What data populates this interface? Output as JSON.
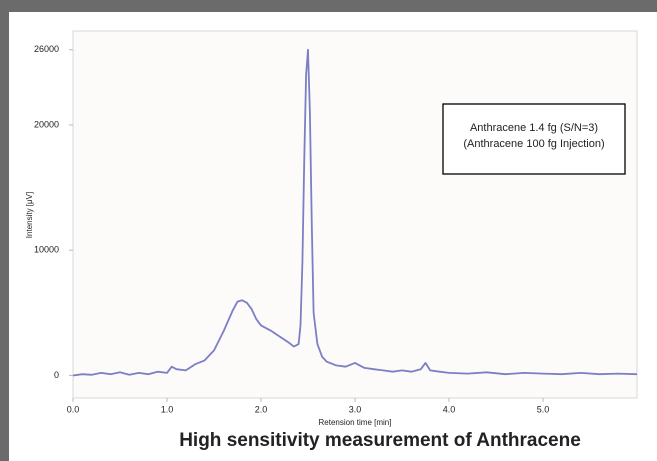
{
  "chart_data": {
    "type": "line",
    "title": "High sensitivity measurement of Anthracene",
    "x_label": "Retension time [min]",
    "y_label": "Intensity [μV]",
    "annotations": [
      "Anthracene 1.4 fg (S/N=3)",
      "(Anthracene 100 fg Injection)"
    ],
    "color": "#7b7fc4",
    "x": [
      0,
      0.1,
      0.2,
      0.3,
      0.4,
      0.5,
      0.6,
      0.7,
      0.8,
      0.9,
      1.0,
      1.05,
      1.1,
      1.2,
      1.3,
      1.4,
      1.5,
      1.6,
      1.7,
      1.75,
      1.8,
      1.85,
      1.9,
      1.95,
      2.0,
      2.05,
      2.1,
      2.2,
      2.3,
      2.35,
      2.4,
      2.42,
      2.44,
      2.46,
      2.48,
      2.5,
      2.52,
      2.54,
      2.56,
      2.6,
      2.65,
      2.7,
      2.8,
      2.9,
      3.0,
      3.1,
      3.2,
      3.3,
      3.4,
      3.5,
      3.6,
      3.7,
      3.75,
      3.8,
      3.9,
      4.0,
      4.2,
      4.4,
      4.6,
      4.8,
      5.0,
      5.2,
      5.4,
      5.6,
      5.8,
      6.0
    ],
    "values": [
      0,
      100,
      50,
      200,
      100,
      250,
      50,
      200,
      100,
      300,
      200,
      700,
      500,
      400,
      900,
      1200,
      2000,
      3500,
      5200,
      5900,
      6000,
      5800,
      5300,
      4500,
      4000,
      3800,
      3600,
      3100,
      2600,
      2300,
      2500,
      4000,
      9000,
      17000,
      24000,
      26000,
      21000,
      12000,
      5000,
      2500,
      1500,
      1100,
      800,
      700,
      1000,
      600,
      500,
      400,
      300,
      400,
      300,
      500,
      1000,
      400,
      300,
      200,
      150,
      250,
      100,
      200,
      150,
      100,
      200,
      100,
      150,
      100
    ],
    "xlim": [
      0,
      6
    ],
    "ylim": [
      -1800,
      27500
    ],
    "xticks": [
      {
        "value": 0,
        "label": "0.0"
      },
      {
        "value": 1,
        "label": "1.0"
      },
      {
        "value": 2,
        "label": "2.0"
      },
      {
        "value": 3,
        "label": "3.0"
      },
      {
        "value": 4,
        "label": "4.0"
      },
      {
        "value": 5,
        "label": "5.0"
      }
    ],
    "yticks": [
      0,
      10000,
      20000,
      26000
    ],
    "grid": false
  }
}
